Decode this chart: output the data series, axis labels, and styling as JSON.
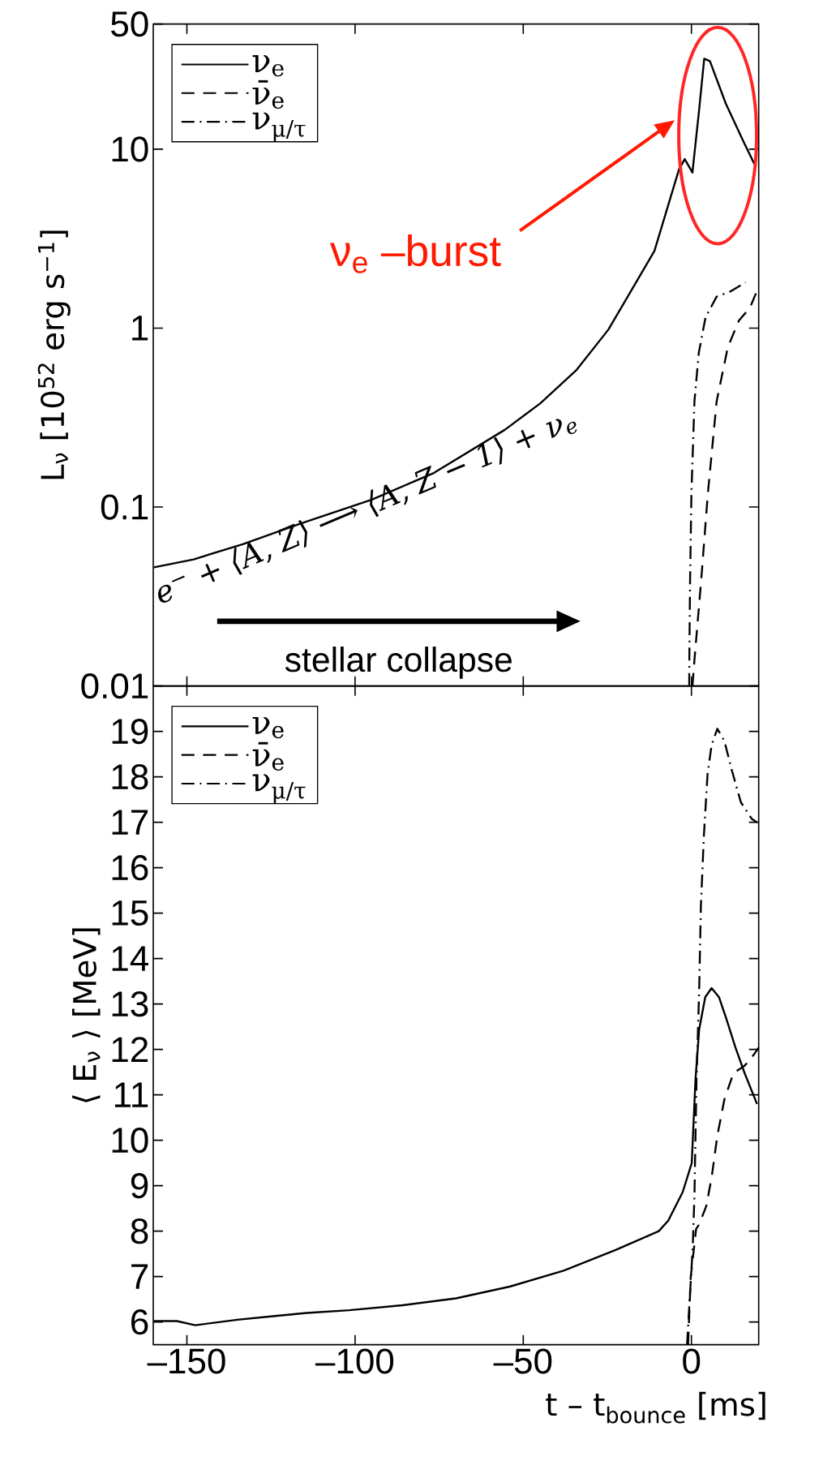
{
  "chart_data": [
    {
      "type": "line",
      "ylabel": "L$_{ν}$ [10$^{52}$ erg s$^{−1}$]",
      "annotations": [
        "ν$_{e}$ –burst",
        "e$^{−}$ + ⟨A, Z⟩ ⟶ ⟨A, Z − 1⟩ + ν$_{e}$",
        "stellar collapse"
      ],
      "log": "y",
      "xlim": [
        -160,
        20
      ],
      "xticks": [
        -150,
        -100,
        -50,
        0
      ],
      "ylim": [
        0.01,
        50
      ],
      "yticks": [
        0.01,
        0.1,
        1,
        10,
        50
      ],
      "tick_labels": "y",
      "legend": "top left",
      "marker": "none",
      "series": [
        {
          "name": "ν$_{e}$",
          "color": "#000000",
          "line_style": "solid",
          "x": [
            -159.8,
            -148,
            -133.4,
            -116,
            -95,
            -76.6,
            -55.5,
            -44.9,
            -34.3,
            -24.7,
            -11,
            -3.7,
            -2,
            0.3,
            2.2,
            3.8,
            5.5,
            10.2,
            15.5,
            18.8
          ],
          "values": [
            0.046,
            0.051,
            0.062,
            0.081,
            0.11,
            0.155,
            0.27,
            0.38,
            0.58,
            0.98,
            2.7,
            7.7,
            8.8,
            7.4,
            16,
            32,
            31,
            18,
            11,
            8.2
          ]
        },
        {
          "name": "ν̄$_{e}$",
          "color": "#000000",
          "line_style": "dashed",
          "x": [
            0.3,
            0.9,
            2.9,
            4.9,
            7.5,
            10.8,
            14.1,
            17.4,
            19.4
          ],
          "values": [
            0.01,
            0.014,
            0.039,
            0.12,
            0.39,
            0.78,
            1.1,
            1.3,
            1.6
          ]
        },
        {
          "name": "ν$_{μ/τ}$",
          "color": "#000000",
          "line_style": "dashdot",
          "x": [
            -0.7,
            -0.4,
            0,
            0.9,
            2.2,
            4.2,
            7.5,
            11.5,
            16.1
          ],
          "values": [
            0.01,
            0.039,
            0.12,
            0.39,
            0.73,
            1.15,
            1.5,
            1.6,
            1.8
          ]
        }
      ]
    },
    {
      "type": "line",
      "ylabel": "⟨ E$_{ν}$ ⟩ [MeV]",
      "xlabel": "t – t$_{bounce}$ [ms]",
      "xlim": [
        -160,
        20
      ],
      "xticks": [
        {
          "value": -150,
          "label": "–150"
        },
        {
          "value": -100,
          "label": "–100"
        },
        {
          "value": -50,
          "label": "–50"
        },
        0
      ],
      "ylim": [
        5.5,
        20
      ],
      "yticks": [
        6,
        7,
        8,
        9,
        10,
        11,
        12,
        13,
        14,
        15,
        16,
        17,
        18,
        19
      ],
      "legend": "top left",
      "marker": "none",
      "series": [
        {
          "name": "ν$_{e}$",
          "color": "#000000",
          "line_style": "solid",
          "x": [
            -159.8,
            -153,
            -147.5,
            -135,
            -125.6,
            -114.4,
            -101.7,
            -85.9,
            -70,
            -54,
            -38,
            -22.4,
            -9.7,
            -6.9,
            -2.6,
            0.1,
            1.2,
            2.3,
            4.1,
            6,
            8.2,
            10.4,
            13.1,
            15.8,
            19.5
          ],
          "values": [
            6.02,
            6.02,
            5.93,
            6.05,
            6.12,
            6.2,
            6.26,
            6.37,
            6.52,
            6.78,
            7.13,
            7.59,
            8,
            8.23,
            8.86,
            9.5,
            11.33,
            12.44,
            13.15,
            13.35,
            13.15,
            12.67,
            12.04,
            11.48,
            10.8
          ]
        },
        {
          "name": "ν̄$_{e}$",
          "color": "#000000",
          "line_style": "dashed",
          "x": [
            -1,
            -0.2,
            1.4,
            2.3,
            4.4,
            6,
            7.7,
            9.8,
            12.5,
            15.8,
            18.5,
            20
          ],
          "values": [
            5.5,
            7,
            8.05,
            8.15,
            8.55,
            9.18,
            10.1,
            10.9,
            11.48,
            11.64,
            11.88,
            12.04
          ]
        },
        {
          "name": "ν$_{μ/τ}$",
          "color": "#000000",
          "line_style": "dashdot",
          "x": [
            -1.3,
            0.4,
            0.9,
            1.5,
            2.3,
            2.8,
            3.7,
            4.8,
            6,
            7.7,
            9.8,
            12,
            14.7,
            17.9,
            19.5
          ],
          "values": [
            5.5,
            7.67,
            8.79,
            11.33,
            13.3,
            15.13,
            16.7,
            18.07,
            18.7,
            19.06,
            18.79,
            18.15,
            17.44,
            17.08,
            17
          ]
        }
      ]
    }
  ]
}
